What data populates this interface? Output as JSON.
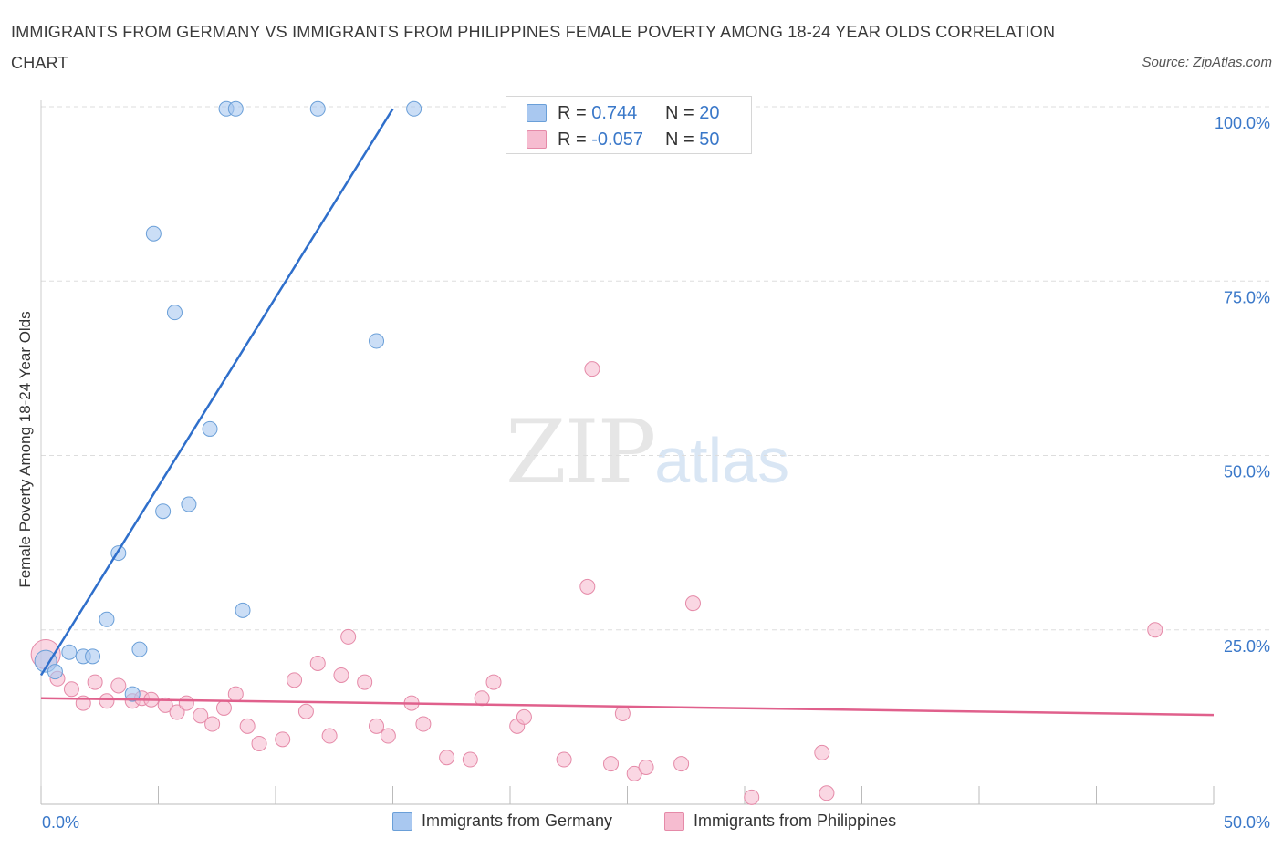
{
  "title": "IMMIGRANTS FROM GERMANY VS IMMIGRANTS FROM PHILIPPINES FEMALE POVERTY AMONG 18-24 YEAR OLDS CORRELATION CHART",
  "source": "Source: ZipAtlas.com",
  "watermark": {
    "zip": "ZIP",
    "atlas": "atlas"
  },
  "colors": {
    "germany_fill": "#a9c8f0",
    "germany_stroke": "#6a9fd8",
    "germany_line": "#2f6fcb",
    "philippines_fill": "#f6bcd0",
    "philippines_stroke": "#e58aa8",
    "philippines_line": "#e0608c",
    "axis_label": "#3a78c9",
    "grid": "#dddddd"
  },
  "legend": {
    "rows": [
      {
        "r_label": "R = ",
        "r_value": "0.744",
        "n_label": "N = ",
        "n_value": "20"
      },
      {
        "r_label": "R = ",
        "r_value": "-0.057",
        "n_label": "N = ",
        "n_value": "50"
      }
    ]
  },
  "bottom_legend": {
    "germany": "Immigrants from Germany",
    "philippines": "Immigrants from Philippines"
  },
  "chart_data": {
    "type": "scatter",
    "title": "IMMIGRANTS FROM GERMANY VS IMMIGRANTS FROM PHILIPPINES FEMALE POVERTY AMONG 18-24 YEAR OLDS CORRELATION CHART",
    "xlabel": "",
    "ylabel": "Female Poverty Among 18-24 Year Olds",
    "xlim": [
      0,
      50
    ],
    "ylim": [
      0,
      100
    ],
    "x_tick_labels": [
      "0.0%",
      "50.0%"
    ],
    "y_ticks": [
      25,
      50,
      75,
      100
    ],
    "y_tick_labels": [
      "25.0%",
      "50.0%",
      "75.0%",
      "100.0%"
    ],
    "grid": true,
    "series": [
      {
        "name": "Immigrants from Germany",
        "r": 0.744,
        "n": 20,
        "trend": [
          [
            0.0,
            18.5
          ],
          [
            15.0,
            99.7
          ]
        ],
        "points": [
          [
            0.2,
            20.5
          ],
          [
            0.6,
            19.0
          ],
          [
            1.2,
            21.8
          ],
          [
            1.8,
            21.2
          ],
          [
            2.2,
            21.2
          ],
          [
            2.8,
            26.5
          ],
          [
            3.3,
            36.0
          ],
          [
            3.9,
            15.8
          ],
          [
            4.2,
            22.2
          ],
          [
            4.8,
            81.8
          ],
          [
            5.2,
            42.0
          ],
          [
            5.7,
            70.5
          ],
          [
            6.3,
            43.0
          ],
          [
            7.2,
            53.8
          ],
          [
            7.9,
            99.7
          ],
          [
            8.3,
            99.7
          ],
          [
            8.6,
            27.8
          ],
          [
            11.8,
            99.7
          ],
          [
            14.3,
            66.4
          ],
          [
            15.9,
            99.7
          ]
        ]
      },
      {
        "name": "Immigrants from Philippines",
        "r": -0.057,
        "n": 50,
        "trend": [
          [
            0.0,
            15.2
          ],
          [
            50.0,
            12.8
          ]
        ],
        "points": [
          [
            0.2,
            21.5
          ],
          [
            0.7,
            18.0
          ],
          [
            1.3,
            16.5
          ],
          [
            1.8,
            14.5
          ],
          [
            2.3,
            17.5
          ],
          [
            2.8,
            14.8
          ],
          [
            3.3,
            17.0
          ],
          [
            3.9,
            14.8
          ],
          [
            4.3,
            15.2
          ],
          [
            4.7,
            15.0
          ],
          [
            5.3,
            14.2
          ],
          [
            5.8,
            13.2
          ],
          [
            6.2,
            14.5
          ],
          [
            6.8,
            12.7
          ],
          [
            7.3,
            11.5
          ],
          [
            7.8,
            13.8
          ],
          [
            8.3,
            15.8
          ],
          [
            8.8,
            11.2
          ],
          [
            9.3,
            8.7
          ],
          [
            10.3,
            9.3
          ],
          [
            10.8,
            17.8
          ],
          [
            11.3,
            13.3
          ],
          [
            11.8,
            20.2
          ],
          [
            12.3,
            9.8
          ],
          [
            12.8,
            18.5
          ],
          [
            13.1,
            24.0
          ],
          [
            13.8,
            17.5
          ],
          [
            14.3,
            11.2
          ],
          [
            14.8,
            9.8
          ],
          [
            15.8,
            14.5
          ],
          [
            16.3,
            11.5
          ],
          [
            17.3,
            6.7
          ],
          [
            18.3,
            6.4
          ],
          [
            18.8,
            15.2
          ],
          [
            19.3,
            17.5
          ],
          [
            20.3,
            11.2
          ],
          [
            20.6,
            12.5
          ],
          [
            22.3,
            6.4
          ],
          [
            23.3,
            31.2
          ],
          [
            23.5,
            62.4
          ],
          [
            24.3,
            5.8
          ],
          [
            24.8,
            13.0
          ],
          [
            25.3,
            4.4
          ],
          [
            25.8,
            5.3
          ],
          [
            27.3,
            5.8
          ],
          [
            27.8,
            28.8
          ],
          [
            30.3,
            1.0
          ],
          [
            33.3,
            7.4
          ],
          [
            33.5,
            1.6
          ],
          [
            47.5,
            25.0
          ]
        ]
      }
    ]
  }
}
